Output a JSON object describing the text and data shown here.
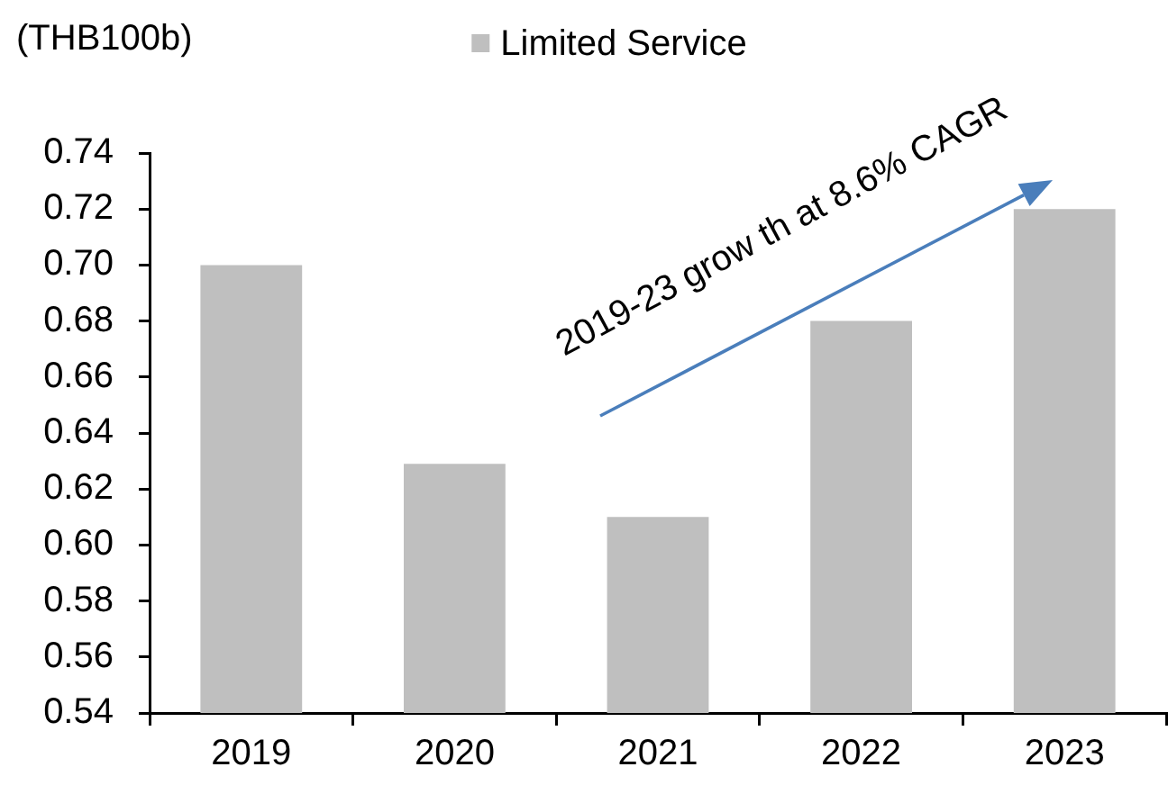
{
  "chart_data": {
    "type": "bar",
    "ylabel": "(THB100b)",
    "categories": [
      "2019",
      "2020",
      "2021",
      "2022",
      "2023"
    ],
    "series": [
      {
        "name": "Limited Service",
        "color": "#bfbfbf",
        "values": [
          0.7,
          0.629,
          0.61,
          0.68,
          0.72
        ]
      }
    ],
    "ylim": [
      0.54,
      0.74
    ],
    "yticks": [
      0.54,
      0.56,
      0.58,
      {
        "value": 0.6,
        "label": "0.60"
      },
      0.62,
      0.64,
      0.66,
      0.68,
      {
        "value": 0.7,
        "label": "0.70"
      },
      0.72,
      0.74
    ],
    "legend": "top",
    "annotations": [
      "2019-23 grow th at 8.6% CAGR"
    ]
  }
}
